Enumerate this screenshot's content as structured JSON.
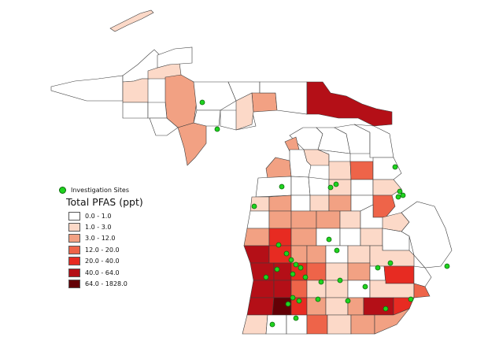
{
  "legend": {
    "sites_label": "Investigation Sites",
    "title": "Total PFAS (ppt)",
    "classes": [
      {
        "label": "0.0 - 1.0",
        "color": "#ffffff"
      },
      {
        "label": "1.0 - 3.0",
        "color": "#fcd9c8"
      },
      {
        "label": "3.0 - 12.0",
        "color": "#f2a183"
      },
      {
        "label": "12.0 - 20.0",
        "color": "#ee6449"
      },
      {
        "label": "20.0 - 40.0",
        "color": "#e72b22"
      },
      {
        "label": "40.0 - 64.0",
        "color": "#b40f17"
      },
      {
        "label": "64.0 - 1828.0",
        "color": "#630006"
      }
    ]
  },
  "colors": {
    "site_fill": "#1fd31f",
    "county_border": "#3d3d3d"
  }
}
